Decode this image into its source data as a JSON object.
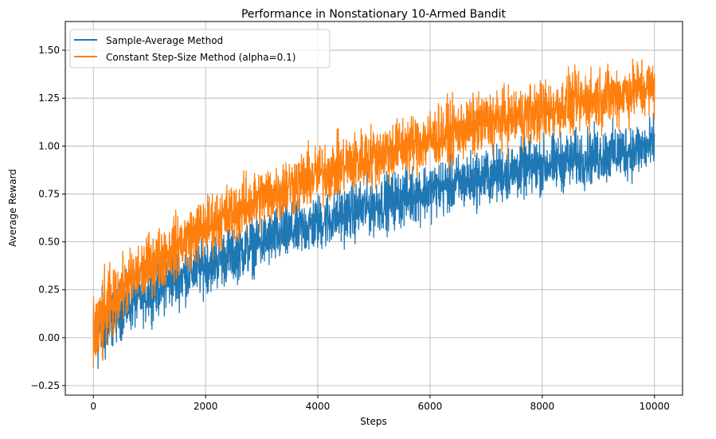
{
  "chart_data": {
    "type": "line",
    "title": "Performance in Nonstationary 10-Armed Bandit",
    "xlabel": "Steps",
    "ylabel": "Average Reward",
    "xlim": [
      -500,
      10500
    ],
    "ylim": [
      -0.3,
      1.65
    ],
    "xticks": [
      0,
      2000,
      4000,
      6000,
      8000,
      10000
    ],
    "xtick_labels": [
      "0",
      "2000",
      "4000",
      "6000",
      "8000",
      "10000"
    ],
    "yticks": [
      -0.25,
      0,
      0.25,
      0.5,
      0.75,
      1.0,
      1.25,
      1.5
    ],
    "ytick_labels": [
      "−0.25",
      "0.00",
      "0.25",
      "0.50",
      "0.75",
      "1.00",
      "1.25",
      "1.50"
    ],
    "grid": true,
    "legend_position": "top-left",
    "series": [
      {
        "name": "Sample-Average Method",
        "color": "#1f77b4",
        "trend_x": [
          0,
          500,
          1000,
          2000,
          3000,
          4000,
          5000,
          6000,
          7000,
          8000,
          9000,
          10000
        ],
        "trend_y": [
          0.0,
          0.15,
          0.24,
          0.38,
          0.5,
          0.6,
          0.69,
          0.77,
          0.84,
          0.9,
          0.95,
          1.0
        ],
        "noise": 0.11
      },
      {
        "name": "Constant Step-Size Method (alpha=0.1)",
        "color": "#ff7f0e",
        "trend_x": [
          0,
          500,
          1000,
          2000,
          3000,
          4000,
          5000,
          6000,
          7000,
          8000,
          9000,
          10000
        ],
        "trend_y": [
          0.0,
          0.25,
          0.38,
          0.58,
          0.73,
          0.85,
          0.95,
          1.04,
          1.12,
          1.18,
          1.25,
          1.31
        ],
        "noise": 0.12
      }
    ]
  }
}
